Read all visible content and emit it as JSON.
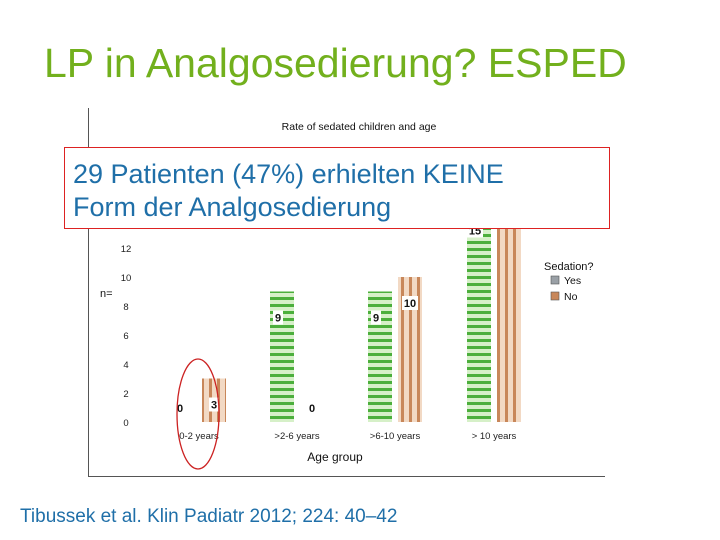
{
  "slide": {
    "title": "LP in Analgosedierung? ESPED",
    "callout_line1": "29 Patienten (47%) erhielten KEINE",
    "callout_line2": "Form der Analgosedierung",
    "citation": "Tibussek et al. Klin Padiatr 2012; 224: 40–42"
  },
  "colors": {
    "title": "#72b01d",
    "callout_text": "#1f6fa8",
    "callout_border": "#dd2222",
    "yes_bar": "#4caf3c",
    "no_bar": "#c8875a",
    "highlight_circle": "#cc2222"
  },
  "chart_data": {
    "type": "bar",
    "title": "Rate of sedated children and age",
    "xlabel": "Age group",
    "ylabel": "n=",
    "categories": [
      "0-2 years",
      ">2-6 years",
      ">6-10 years",
      "> 10 years"
    ],
    "series": [
      {
        "name": "Yes",
        "values": [
          0,
          9,
          9,
          15
        ]
      },
      {
        "name": "No",
        "values": [
          3,
          0,
          10,
          16
        ]
      }
    ],
    "yticks": [
      0,
      2,
      4,
      6,
      8,
      10,
      12
    ],
    "legend_title": "Sedation?",
    "legend_position": "right",
    "highlighted_category": "0-2 years",
    "grid": false
  }
}
